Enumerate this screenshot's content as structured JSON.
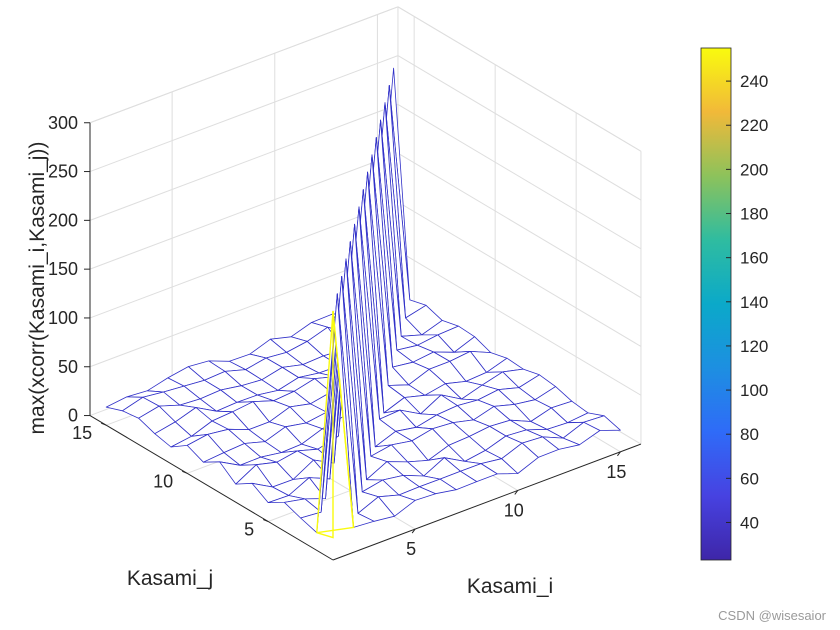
{
  "chart_data": {
    "type": "surface",
    "xlabel": "Kasami_i",
    "ylabel": "Kasami_j",
    "zlabel": "max(xcorr(Kasami_i,Kasami_j))",
    "x_ticks": [
      "5",
      "10",
      "15"
    ],
    "y_ticks": [
      "5",
      "10",
      "15"
    ],
    "z_ticks": [
      "0",
      "50",
      "100",
      "150",
      "200",
      "250",
      "300"
    ],
    "xlim": [
      1,
      16
    ],
    "ylim": [
      1,
      16
    ],
    "zlim": [
      0,
      300
    ],
    "grid": true,
    "grid_size": 15,
    "baseline_value": 23,
    "baseline_jitter": [
      -6,
      9
    ],
    "diagonal_peak_value": 255,
    "colormap": "parula",
    "colorbar": {
      "location": "right",
      "limits": [
        23,
        255
      ],
      "ticks": [
        "40",
        "60",
        "80",
        "100",
        "120",
        "140",
        "160",
        "180",
        "200",
        "220",
        "240"
      ],
      "tick_values": [
        40,
        60,
        80,
        100,
        120,
        140,
        160,
        180,
        200,
        220,
        240
      ]
    },
    "mesh_color": "#3030c8"
  },
  "watermark": "CSDN @wisesaior"
}
